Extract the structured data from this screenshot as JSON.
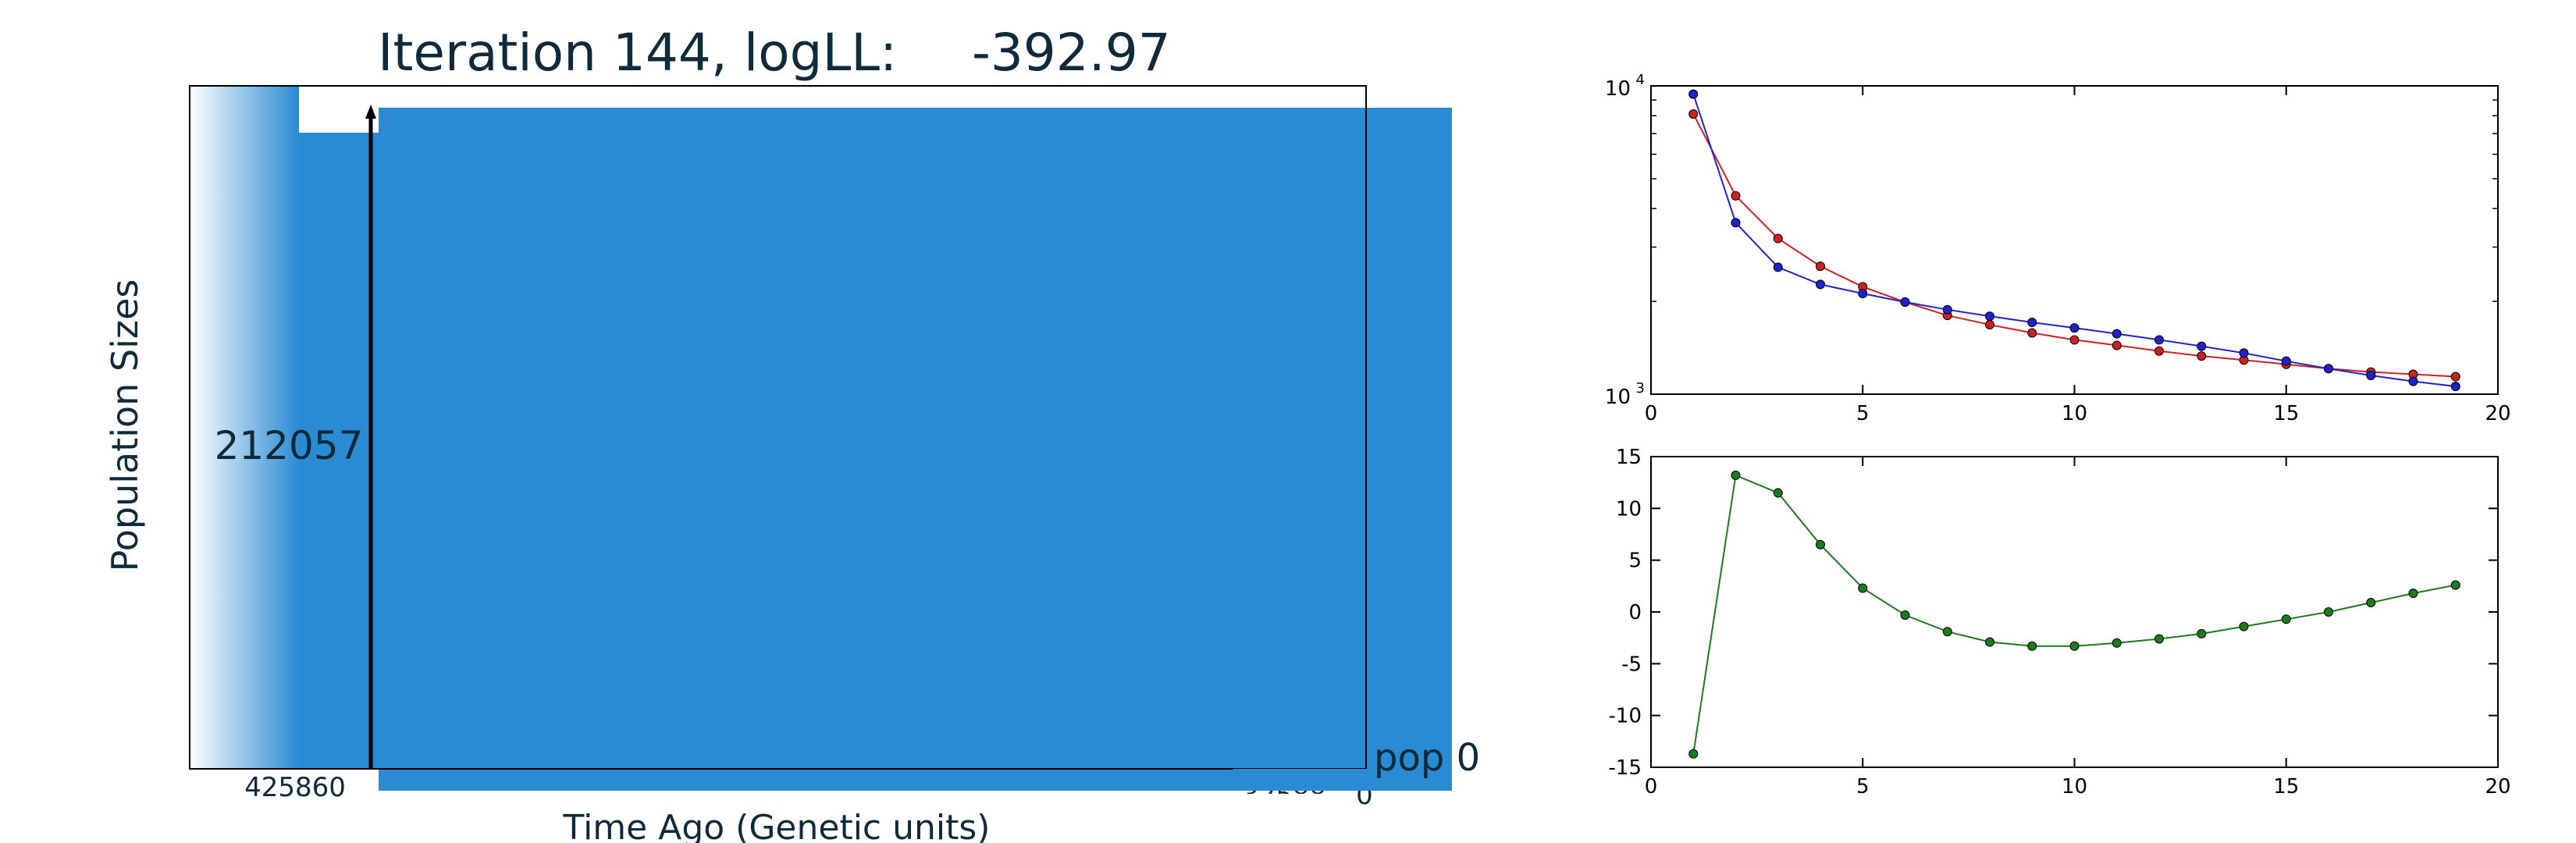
{
  "colors": {
    "population_fill": "#2a8bd3",
    "text_dark": "#0f2a3a",
    "series_a": "#cc2222",
    "series_b": "#2222cc",
    "series_c": "#1d7a1d"
  },
  "main_panel": {
    "title_prefix": "Iteration 144, logLL:",
    "title_value": "-392.97",
    "ylabel": "Population Sizes",
    "xlabel": "Time Ago (Genetic units)",
    "population_label": "212057",
    "x_tick_label": "425860",
    "clipped_tick_label": "32588",
    "clipped_zero": "0",
    "pop_label": "pop 0"
  },
  "chart_data": [
    {
      "type": "line",
      "yscale": "log",
      "xlim": [
        0,
        20
      ],
      "ylim": [
        1000,
        10000
      ],
      "x_ticks": [
        0,
        5,
        10,
        15,
        20
      ],
      "y_ticks": [
        "10^3",
        "10^4"
      ],
      "x": [
        1,
        2,
        3,
        4,
        5,
        6,
        7,
        8,
        9,
        10,
        11,
        12,
        13,
        14,
        15,
        16,
        17,
        18,
        19
      ],
      "series": [
        {
          "color": "#cc2222",
          "values": [
            8100,
            4400,
            3200,
            2600,
            2230,
            1990,
            1800,
            1680,
            1580,
            1500,
            1440,
            1380,
            1330,
            1290,
            1250,
            1210,
            1180,
            1160,
            1140
          ]
        },
        {
          "color": "#2222cc",
          "values": [
            9400,
            3600,
            2580,
            2270,
            2120,
            1990,
            1880,
            1790,
            1710,
            1640,
            1570,
            1500,
            1430,
            1360,
            1280,
            1210,
            1150,
            1100,
            1060
          ]
        }
      ],
      "grid": false
    },
    {
      "type": "line",
      "xlim": [
        0,
        20
      ],
      "ylim": [
        -15,
        15
      ],
      "x_ticks": [
        0,
        5,
        10,
        15,
        20
      ],
      "y_ticks": [
        -15,
        -10,
        -5,
        0,
        5,
        10,
        15
      ],
      "x": [
        1,
        2,
        3,
        4,
        5,
        6,
        7,
        8,
        9,
        10,
        11,
        12,
        13,
        14,
        15,
        16,
        17,
        18,
        19
      ],
      "series": [
        {
          "color": "#1d7a1d",
          "values": [
            -13.7,
            13.2,
            11.5,
            6.5,
            2.3,
            -0.3,
            -1.9,
            -2.9,
            -3.3,
            -3.3,
            -3.0,
            -2.6,
            -2.1,
            -1.4,
            -0.7,
            0.0,
            0.9,
            1.8,
            2.6
          ]
        }
      ],
      "grid": false
    }
  ]
}
